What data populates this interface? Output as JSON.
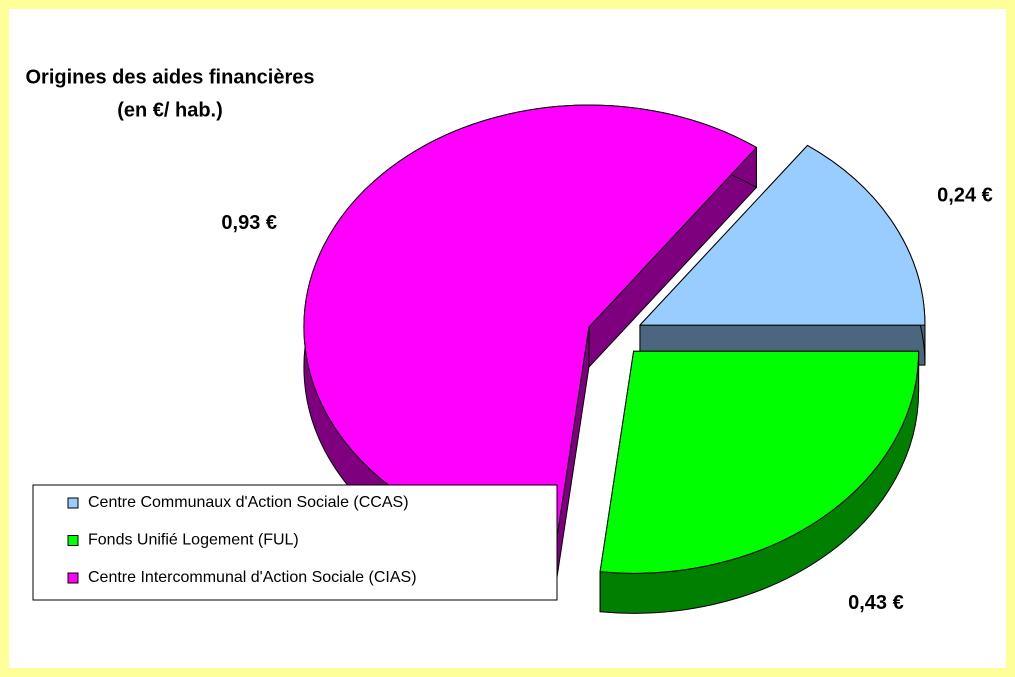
{
  "chart_data": {
    "type": "pie",
    "title": "Origines des aides financières",
    "subtitle": "(en €/ hab.)",
    "categories": [
      "Centre Communaux d'Action Sociale (CCAS)",
      "Fonds Unifié Logement (FUL)",
      "Centre Intercommunal d'Action Sociale (CIAS)"
    ],
    "values": [
      0.24,
      0.43,
      0.93
    ],
    "value_labels": [
      "0,24 €",
      "0,43 €",
      "0,93 €"
    ],
    "colors": [
      "#99ccff",
      "#00ff00",
      "#ff00ff"
    ],
    "legend": "bottom-left"
  }
}
